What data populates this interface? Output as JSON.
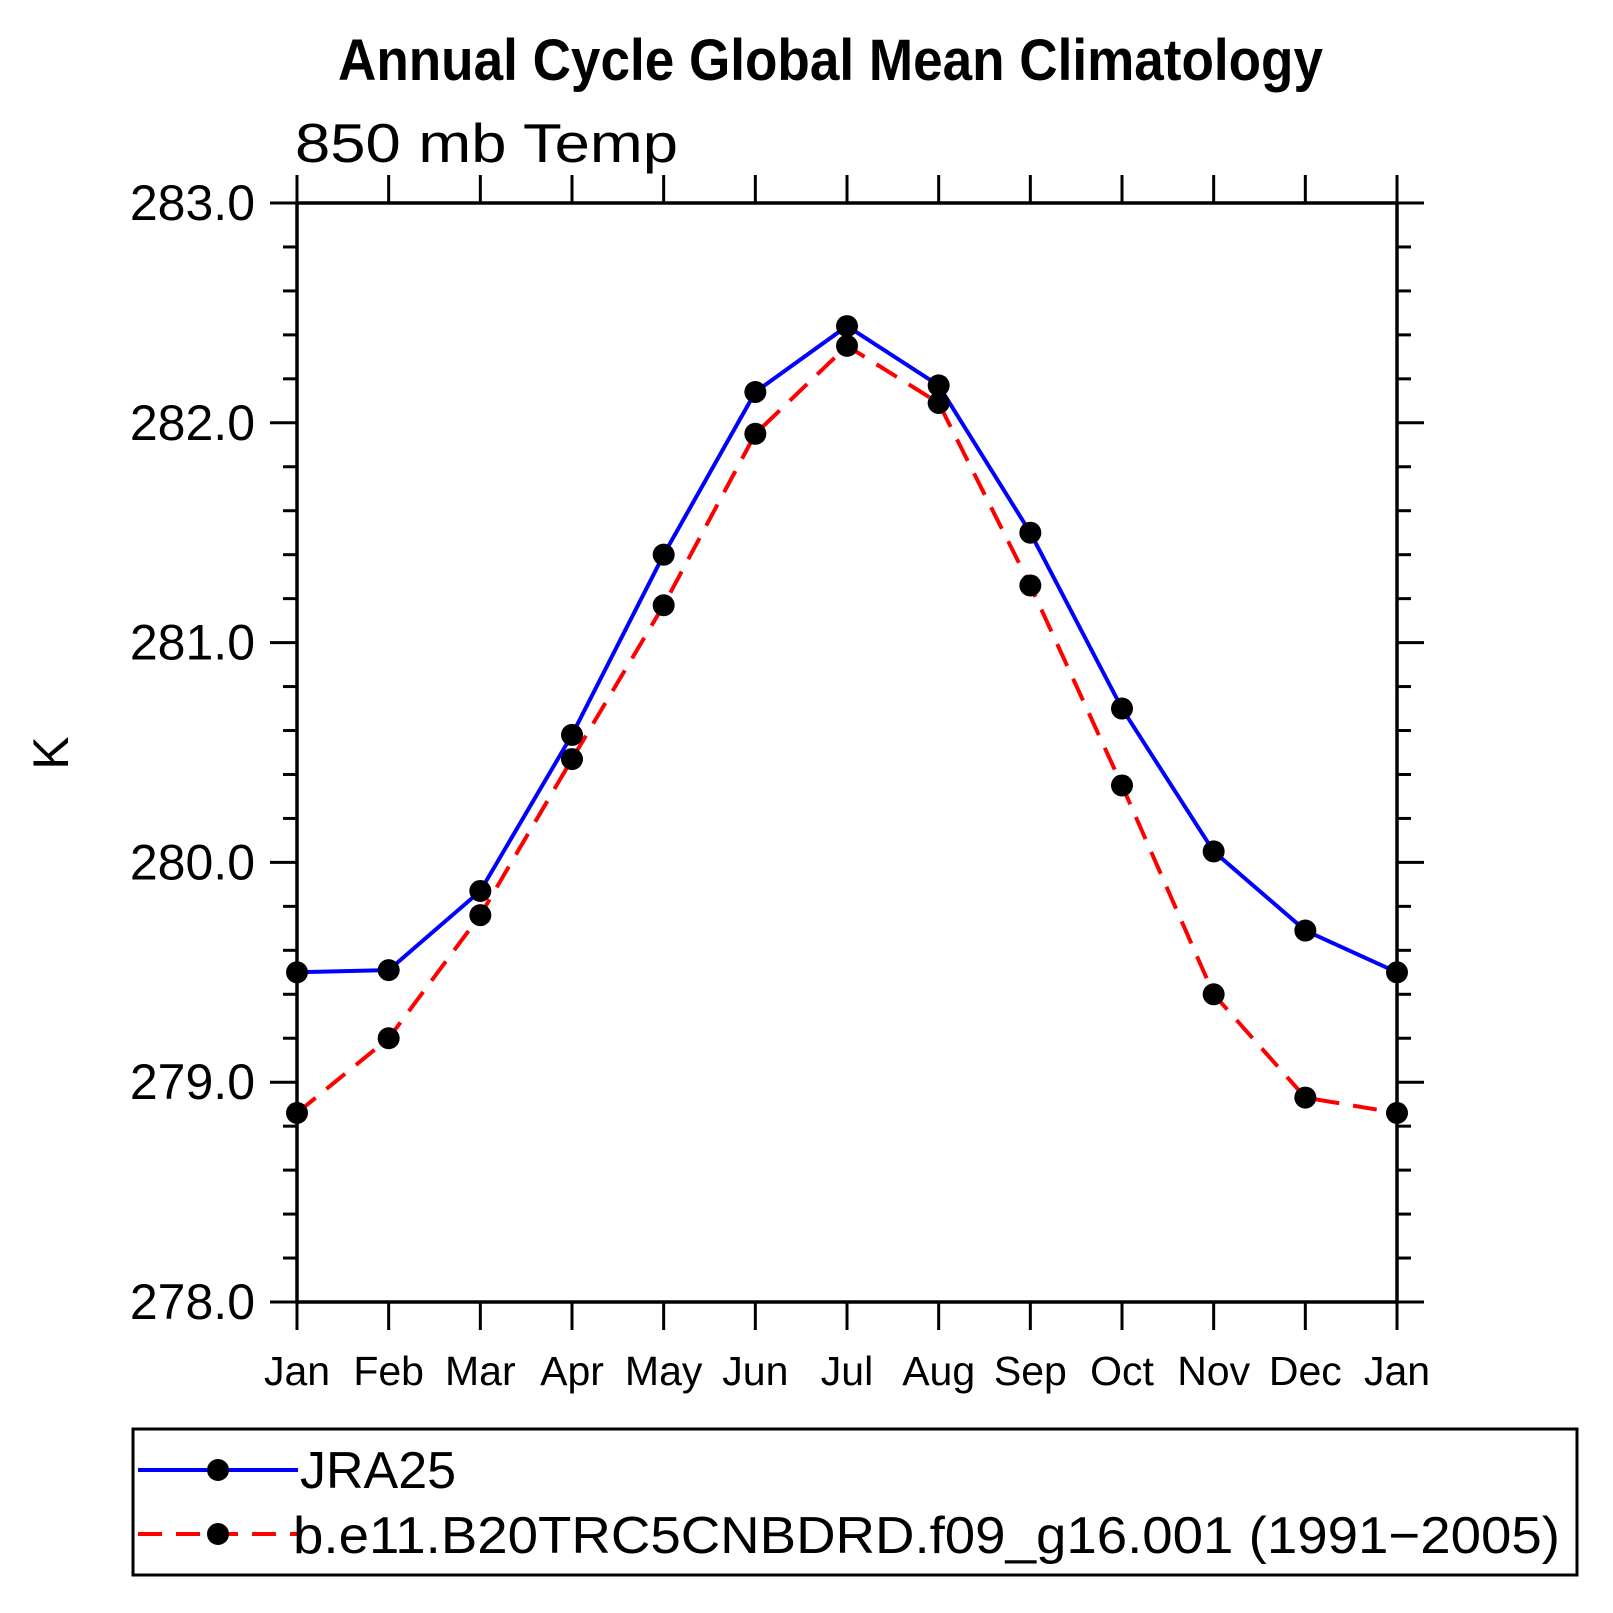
{
  "title": "Annual Cycle Global Mean Climatology",
  "subtitle": "850 mb Temp",
  "ylabel": "K",
  "colors": {
    "axis": "#000000",
    "marker": "#000000",
    "jra25_line": "#0000ff",
    "model_line": "#ff0000",
    "background": "#ffffff"
  },
  "legend": {
    "position": "bottom",
    "entries": [
      {
        "label": "JRA25",
        "line_style": "solid",
        "color": "#0000ff",
        "marker": "filled-circle"
      },
      {
        "label": "b.e11.B20TRC5CNBDRD.f09_g16.001 (1991−2005)",
        "line_style": "dashed",
        "color": "#ff0000",
        "marker": "filled-circle"
      }
    ]
  },
  "chart_data": {
    "type": "line",
    "title": "Annual Cycle Global Mean Climatology",
    "subtitle": "850 mb Temp",
    "xlabel": "",
    "ylabel": "K",
    "x_categories": [
      "Jan",
      "Feb",
      "Mar",
      "Apr",
      "May",
      "Jun",
      "Jul",
      "Aug",
      "Sep",
      "Oct",
      "Nov",
      "Dec",
      "Jan"
    ],
    "ylim": [
      278.0,
      283.0
    ],
    "ytick_values": [
      278.0,
      279.0,
      280.0,
      281.0,
      282.0,
      283.0
    ],
    "ytick_labels": [
      "278.0",
      "279.0",
      "280.0",
      "281.0",
      "282.0",
      "283.0"
    ],
    "y_minor_step": 0.2,
    "grid": false,
    "legend_position": "bottom",
    "series": [
      {
        "name": "JRA25",
        "color": "#0000ff",
        "style": "solid",
        "marker": "filled-circle",
        "values": [
          279.5,
          279.51,
          279.87,
          280.58,
          281.4,
          282.14,
          282.44,
          282.17,
          281.5,
          280.7,
          280.05,
          279.69,
          279.5
        ]
      },
      {
        "name": "b.e11.B20TRC5CNBDRD.f09_g16.001 (1991−2005)",
        "color": "#ff0000",
        "style": "dashed",
        "marker": "filled-circle",
        "values": [
          278.86,
          279.2,
          279.76,
          280.47,
          281.17,
          281.95,
          282.35,
          282.09,
          281.26,
          280.35,
          279.4,
          278.93,
          278.86
        ]
      }
    ]
  }
}
